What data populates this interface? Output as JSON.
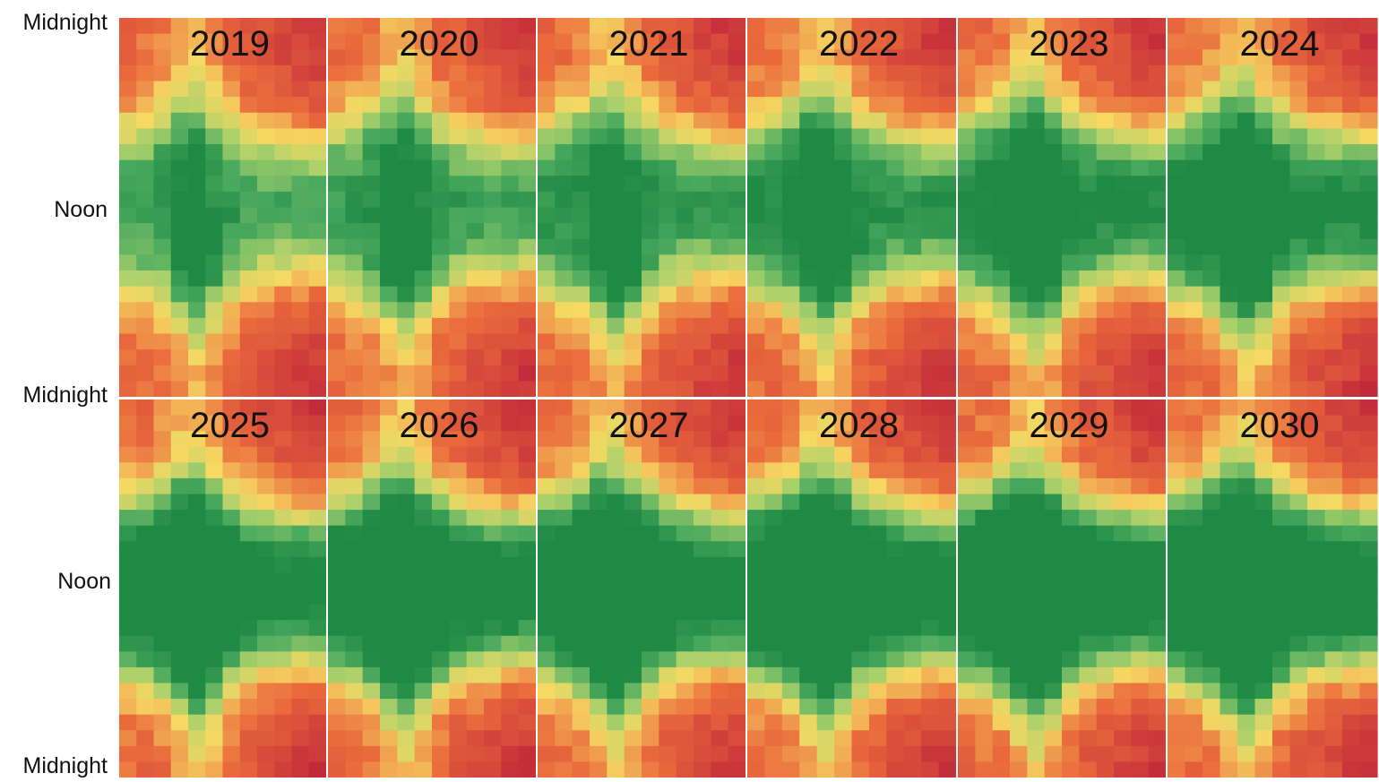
{
  "chart_data": {
    "type": "heatmap",
    "panels": [
      "2019",
      "2020",
      "2021",
      "2022",
      "2023",
      "2024",
      "2025",
      "2026",
      "2027",
      "2028",
      "2029",
      "2030"
    ],
    "y_ticks": [
      "Midnight",
      "Noon",
      "Midnight"
    ],
    "grid": "3x2 small multiples per panel? no - 6 columns x 2 rows",
    "axis_y_label": "",
    "axis_x_label": "",
    "color_scale": {
      "low": "#c22a3a",
      "mid": "#f6d963",
      "high": "#1f8a44"
    },
    "cell_grid": {
      "columns": 12,
      "rows": 24
    },
    "intensity_trend": [
      0.0,
      0.08,
      0.15,
      0.25,
      0.34,
      0.42,
      0.52,
      0.58,
      0.63,
      0.68,
      0.72,
      0.76
    ]
  }
}
